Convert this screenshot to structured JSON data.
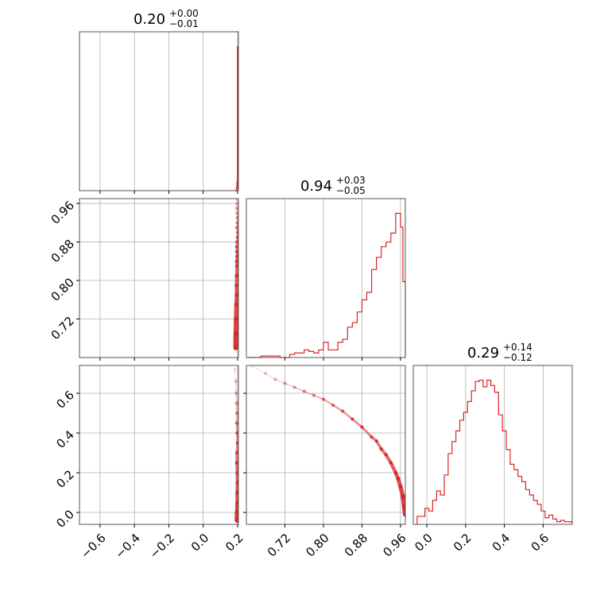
{
  "chart_data": {
    "type": "corner",
    "color": "#d62728",
    "grid": true,
    "panels": [
      {
        "id": "hist-0",
        "kind": "histogram",
        "title": {
          "value": "0.20",
          "plus": "+0.00",
          "minus": "−0.01"
        },
        "xlim": [
          -0.72,
          0.205
        ],
        "bins": [
          [
            0.186,
            0.19,
            0.0
          ],
          [
            0.19,
            0.193,
            0.003
          ],
          [
            0.193,
            0.196,
            0.02
          ],
          [
            0.196,
            0.199,
            0.06
          ],
          [
            0.199,
            0.202,
            1.0
          ]
        ]
      },
      {
        "id": "hist-1",
        "kind": "histogram",
        "title": {
          "value": "0.94",
          "plus": "+0.03",
          "minus": "−0.05"
        },
        "xlim": [
          0.64,
          0.97
        ],
        "bins": [
          [
            0.64,
            0.65,
            0.0
          ],
          [
            0.65,
            0.66,
            0.0
          ],
          [
            0.66,
            0.67,
            0.0
          ],
          [
            0.67,
            0.68,
            0.01
          ],
          [
            0.68,
            0.69,
            0.01
          ],
          [
            0.69,
            0.7,
            0.01
          ],
          [
            0.7,
            0.71,
            0.01
          ],
          [
            0.71,
            0.72,
            0.0
          ],
          [
            0.72,
            0.73,
            0.0
          ],
          [
            0.73,
            0.74,
            0.02
          ],
          [
            0.74,
            0.75,
            0.03
          ],
          [
            0.75,
            0.76,
            0.03
          ],
          [
            0.76,
            0.77,
            0.05
          ],
          [
            0.77,
            0.78,
            0.04
          ],
          [
            0.78,
            0.79,
            0.03
          ],
          [
            0.79,
            0.8,
            0.05
          ],
          [
            0.8,
            0.81,
            0.1
          ],
          [
            0.81,
            0.82,
            0.05
          ],
          [
            0.82,
            0.83,
            0.05
          ],
          [
            0.83,
            0.84,
            0.1
          ],
          [
            0.84,
            0.85,
            0.12
          ],
          [
            0.85,
            0.86,
            0.2
          ],
          [
            0.86,
            0.87,
            0.23
          ],
          [
            0.87,
            0.88,
            0.3
          ],
          [
            0.88,
            0.89,
            0.38
          ],
          [
            0.89,
            0.9,
            0.43
          ],
          [
            0.9,
            0.91,
            0.58
          ],
          [
            0.91,
            0.92,
            0.66
          ],
          [
            0.92,
            0.93,
            0.73
          ],
          [
            0.93,
            0.94,
            0.76
          ],
          [
            0.94,
            0.95,
            0.82
          ],
          [
            0.95,
            0.96,
            0.95
          ],
          [
            0.96,
            0.965,
            0.86
          ],
          [
            0.965,
            0.97,
            0.5
          ]
        ]
      },
      {
        "id": "hist-2",
        "kind": "histogram",
        "title": {
          "value": "0.29",
          "plus": "+0.14",
          "minus": "−0.12"
        },
        "xlim": [
          -0.07,
          0.75
        ],
        "bins": [
          [
            -0.05,
            -0.03,
            0.06
          ],
          [
            -0.03,
            -0.01,
            0.06
          ],
          [
            -0.01,
            0.01,
            0.12
          ],
          [
            0.01,
            0.03,
            0.1
          ],
          [
            0.03,
            0.05,
            0.18
          ],
          [
            0.05,
            0.07,
            0.25
          ],
          [
            0.07,
            0.09,
            0.22
          ],
          [
            0.09,
            0.11,
            0.37
          ],
          [
            0.11,
            0.13,
            0.53
          ],
          [
            0.13,
            0.15,
            0.62
          ],
          [
            0.15,
            0.17,
            0.7
          ],
          [
            0.17,
            0.19,
            0.78
          ],
          [
            0.19,
            0.21,
            0.84
          ],
          [
            0.21,
            0.23,
            0.92
          ],
          [
            0.23,
            0.25,
            1.0
          ],
          [
            0.25,
            0.27,
            1.07
          ],
          [
            0.27,
            0.29,
            1.08
          ],
          [
            0.29,
            0.31,
            1.03
          ],
          [
            0.31,
            0.33,
            1.08
          ],
          [
            0.33,
            0.35,
            1.04
          ],
          [
            0.35,
            0.37,
            0.99
          ],
          [
            0.37,
            0.39,
            0.82
          ],
          [
            0.39,
            0.41,
            0.7
          ],
          [
            0.41,
            0.43,
            0.56
          ],
          [
            0.43,
            0.45,
            0.45
          ],
          [
            0.45,
            0.47,
            0.41
          ],
          [
            0.47,
            0.49,
            0.36
          ],
          [
            0.49,
            0.51,
            0.32
          ],
          [
            0.51,
            0.53,
            0.26
          ],
          [
            0.53,
            0.55,
            0.22
          ],
          [
            0.55,
            0.57,
            0.18
          ],
          [
            0.57,
            0.59,
            0.15
          ],
          [
            0.59,
            0.61,
            0.1
          ],
          [
            0.61,
            0.63,
            0.05
          ],
          [
            0.63,
            0.65,
            0.07
          ],
          [
            0.65,
            0.67,
            0.04
          ],
          [
            0.67,
            0.69,
            0.02
          ],
          [
            0.69,
            0.71,
            0.03
          ],
          [
            0.71,
            0.73,
            0.02
          ],
          [
            0.73,
            0.75,
            0.02
          ]
        ]
      }
    ],
    "scatter_panels": [
      {
        "id": "scatter-1-0",
        "xlim": [
          -0.72,
          0.205
        ],
        "ylim": [
          0.64,
          0.97
        ],
        "points": [
          [
            0.193,
            0.97
          ],
          [
            0.196,
            0.96
          ],
          [
            0.195,
            0.95
          ],
          [
            0.197,
            0.94
          ],
          [
            0.199,
            0.93
          ],
          [
            0.198,
            0.92
          ],
          [
            0.196,
            0.91
          ],
          [
            0.2,
            0.9
          ],
          [
            0.199,
            0.89
          ],
          [
            0.197,
            0.88
          ],
          [
            0.195,
            0.87
          ],
          [
            0.196,
            0.86
          ],
          [
            0.197,
            0.85
          ],
          [
            0.195,
            0.84
          ],
          [
            0.196,
            0.83
          ],
          [
            0.195,
            0.81
          ],
          [
            0.194,
            0.79
          ],
          [
            0.195,
            0.77
          ],
          [
            0.193,
            0.75
          ],
          [
            0.191,
            0.72
          ],
          [
            0.19,
            0.69
          ],
          [
            0.189,
            0.66
          ]
        ]
      },
      {
        "id": "scatter-2-0",
        "xlim": [
          -0.72,
          0.205
        ],
        "ylim": [
          -0.06,
          0.74
        ],
        "points": [
          [
            0.184,
            0.72
          ],
          [
            0.19,
            0.66
          ],
          [
            0.192,
            0.6
          ],
          [
            0.194,
            0.55
          ],
          [
            0.196,
            0.5
          ],
          [
            0.195,
            0.45
          ],
          [
            0.197,
            0.4
          ],
          [
            0.199,
            0.35
          ],
          [
            0.196,
            0.3
          ],
          [
            0.195,
            0.25
          ],
          [
            0.198,
            0.2
          ],
          [
            0.2,
            0.15
          ],
          [
            0.199,
            0.1
          ],
          [
            0.2,
            0.05
          ],
          [
            0.198,
            0.0
          ],
          [
            0.197,
            -0.04
          ]
        ]
      },
      {
        "id": "scatter-2-1",
        "xlim": [
          0.64,
          0.97
        ],
        "ylim": [
          -0.06,
          0.74
        ],
        "points": [
          [
            0.65,
            0.74
          ],
          [
            0.68,
            0.7
          ],
          [
            0.7,
            0.67
          ],
          [
            0.72,
            0.65
          ],
          [
            0.74,
            0.63
          ],
          [
            0.76,
            0.61
          ],
          [
            0.78,
            0.59
          ],
          [
            0.8,
            0.57
          ],
          [
            0.82,
            0.54
          ],
          [
            0.84,
            0.51
          ],
          [
            0.86,
            0.47
          ],
          [
            0.88,
            0.43
          ],
          [
            0.9,
            0.38
          ],
          [
            0.91,
            0.36
          ],
          [
            0.92,
            0.32
          ],
          [
            0.93,
            0.29
          ],
          [
            0.94,
            0.25
          ],
          [
            0.95,
            0.2
          ],
          [
            0.955,
            0.17
          ],
          [
            0.96,
            0.13
          ],
          [
            0.965,
            0.08
          ],
          [
            0.968,
            0.03
          ],
          [
            0.97,
            -0.01
          ]
        ]
      }
    ],
    "axes": {
      "x0": {
        "ticks": [
          -0.6,
          -0.4,
          -0.2,
          0.0,
          0.2
        ],
        "labels": [
          "−0.6",
          "−0.4",
          "−0.2",
          "0.0",
          "0.2"
        ]
      },
      "x1": {
        "ticks": [
          0.72,
          0.8,
          0.88,
          0.96
        ],
        "labels": [
          "0.72",
          "0.80",
          "0.88",
          "0.96"
        ]
      },
      "x2": {
        "ticks": [
          0.0,
          0.2,
          0.4,
          0.6
        ],
        "labels": [
          "0.0",
          "0.2",
          "0.4",
          "0.6"
        ]
      },
      "y1": {
        "ticks": [
          0.72,
          0.8,
          0.88,
          0.96
        ],
        "labels": [
          "0.72",
          "0.80",
          "0.88",
          "0.96"
        ]
      },
      "y2": {
        "ticks": [
          0.0,
          0.2,
          0.4,
          0.6
        ],
        "labels": [
          "0.0",
          "0.2",
          "0.4",
          "0.6"
        ]
      }
    }
  }
}
